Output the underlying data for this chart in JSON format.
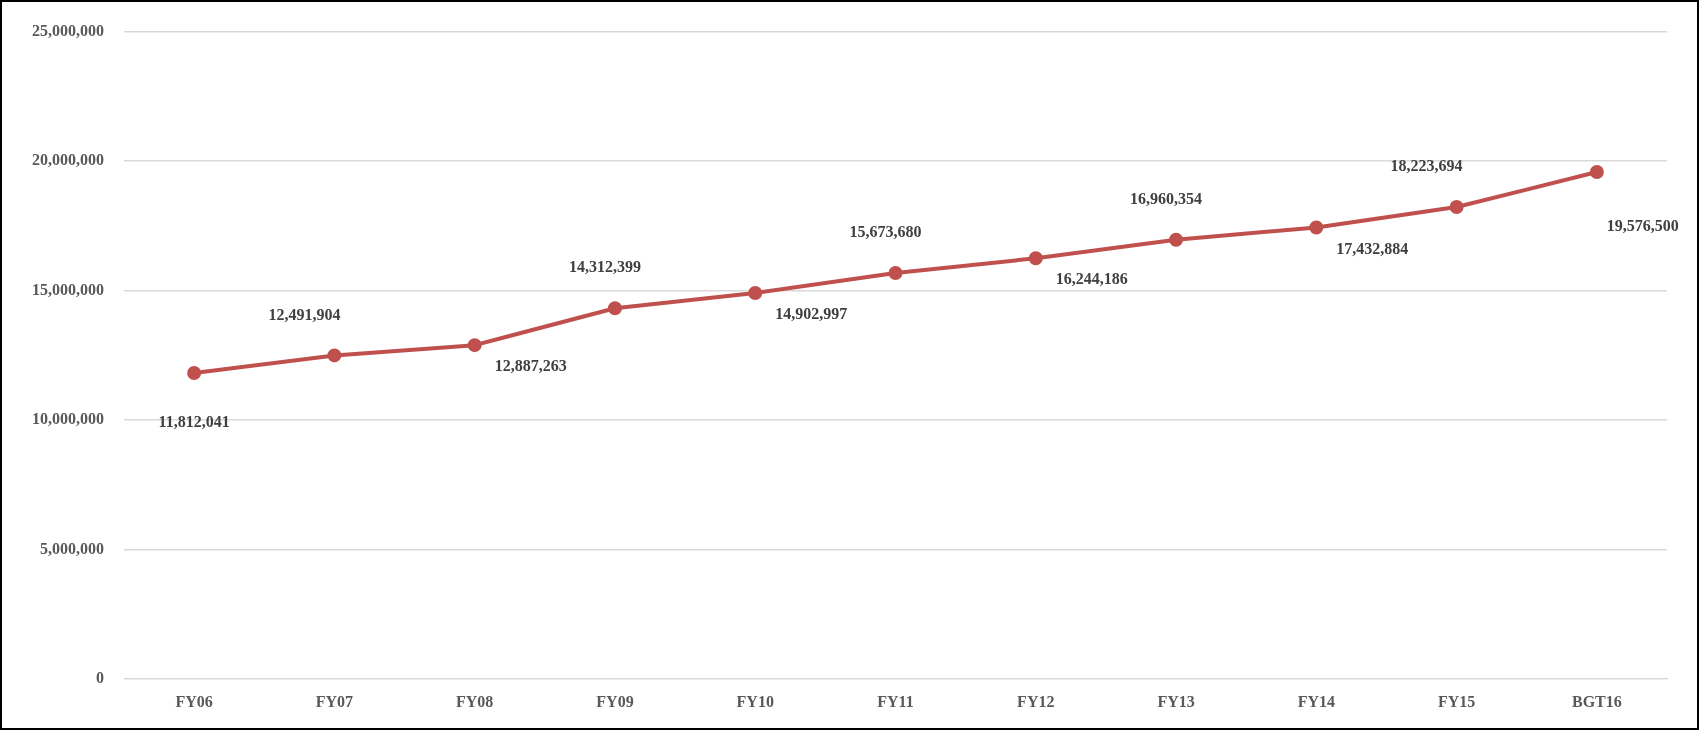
{
  "chart_data": {
    "type": "line",
    "categories": [
      "FY06",
      "FY07",
      "FY08",
      "FY09",
      "FY10",
      "FY11",
      "FY12",
      "FY13",
      "FY14",
      "FY15",
      "BGT16"
    ],
    "series": [
      {
        "color": "#c0504d",
        "values": [
          11812041,
          12491904,
          12887263,
          14312399,
          14902997,
          15673680,
          16244186,
          16960354,
          17432884,
          18223694,
          19576500
        ],
        "value_labels": [
          "11,812,041",
          "12,491,904",
          "12,887,263",
          "14,312,399",
          "14,902,997",
          "15,673,680",
          "16,244,186",
          "16,960,354",
          "17,432,884",
          "18,223,694",
          "19,576,500"
        ]
      }
    ],
    "ylim": [
      0,
      25000000
    ],
    "yticks": [
      {
        "value": 0,
        "label": "0"
      },
      {
        "value": 5000000,
        "label": "5,000,000"
      },
      {
        "value": 10000000,
        "label": "10,000,000"
      },
      {
        "value": 15000000,
        "label": "15,000,000"
      },
      {
        "value": 20000000,
        "label": "20,000,000"
      },
      {
        "value": 25000000,
        "label": "25,000,000"
      }
    ],
    "grid": "y",
    "legend": false,
    "marker": "circle",
    "line_style": "solid"
  }
}
